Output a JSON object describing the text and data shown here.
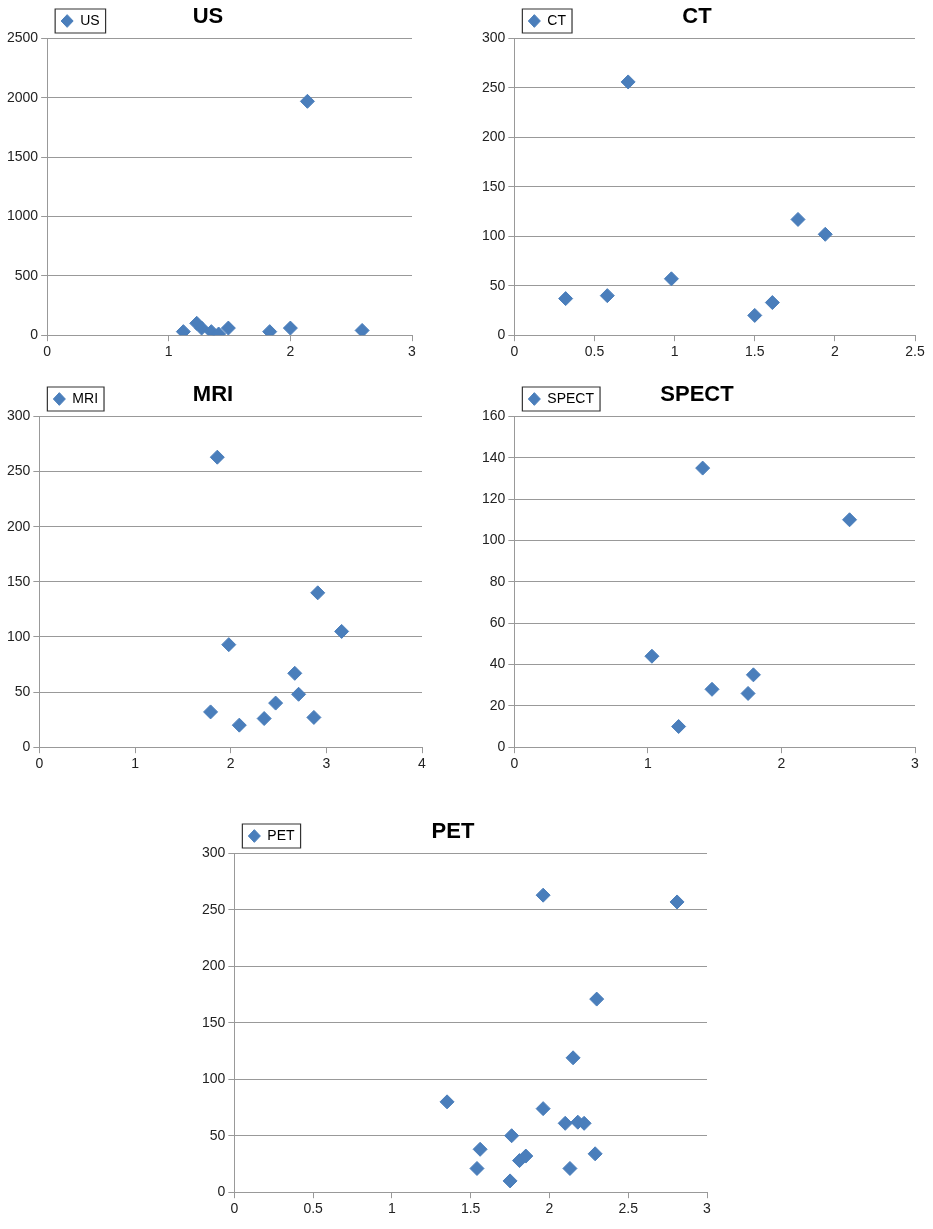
{
  "chart_data": [
    {
      "type": "scatter",
      "title": "US",
      "x": [
        1.12,
        1.23,
        1.27,
        1.35,
        1.41,
        1.49,
        1.83,
        2.0,
        2.14,
        2.59
      ],
      "series": [
        {
          "name": "US",
          "color": "#4a7ebb",
          "values": [
            30,
            100,
            60,
            30,
            10,
            60,
            30,
            60,
            1970,
            40
          ]
        }
      ],
      "xlim": [
        0,
        3
      ],
      "xticks": [
        0,
        1,
        2,
        3
      ],
      "ylim": [
        0,
        2500
      ],
      "yticks": [
        0,
        500,
        1000,
        1500,
        2000,
        2500
      ],
      "grid": "y",
      "legend": "top left",
      "marker": "diamond"
    },
    {
      "type": "scatter",
      "title": "CT",
      "x": [
        0.32,
        0.58,
        0.71,
        0.98,
        1.5,
        1.61,
        1.77,
        1.94
      ],
      "series": [
        {
          "name": "CT",
          "color": "#4a7ebb",
          "values": [
            37,
            40,
            256,
            57,
            20,
            33,
            117,
            102
          ]
        }
      ],
      "xlim": [
        0,
        2.5
      ],
      "xticks": [
        0,
        0.5,
        1,
        1.5,
        2,
        2.5
      ],
      "ylim": [
        0,
        300
      ],
      "yticks": [
        0,
        50,
        100,
        150,
        200,
        250,
        300
      ],
      "grid": "y",
      "legend": "top left",
      "marker": "diamond"
    },
    {
      "type": "scatter",
      "title": "MRI",
      "x": [
        1.79,
        1.86,
        1.98,
        2.09,
        2.35,
        2.47,
        2.67,
        2.71,
        2.87,
        2.91,
        3.16
      ],
      "series": [
        {
          "name": "MRI",
          "color": "#4a7ebb",
          "values": [
            32,
            263,
            93,
            20,
            26,
            40,
            67,
            48,
            27,
            140,
            105
          ]
        }
      ],
      "xlim": [
        0,
        4
      ],
      "xticks": [
        0,
        1,
        2,
        3,
        4
      ],
      "ylim": [
        0,
        300
      ],
      "yticks": [
        0,
        50,
        100,
        150,
        200,
        250,
        300
      ],
      "grid": "y",
      "legend": "top left",
      "marker": "diamond"
    },
    {
      "type": "scatter",
      "title": "SPECT",
      "x": [
        1.03,
        1.23,
        1.41,
        1.48,
        1.75,
        1.79,
        2.51
      ],
      "series": [
        {
          "name": "SPECT",
          "color": "#4a7ebb",
          "values": [
            44,
            10,
            135,
            28,
            26,
            35,
            110
          ]
        }
      ],
      "xlim": [
        0,
        3
      ],
      "xticks": [
        0,
        1,
        2,
        3
      ],
      "ylim": [
        0,
        160
      ],
      "yticks": [
        0,
        20,
        40,
        60,
        80,
        100,
        120,
        140,
        160
      ],
      "grid": "y",
      "legend": "top left",
      "marker": "diamond"
    },
    {
      "type": "scatter",
      "title": "PET",
      "x": [
        1.35,
        1.54,
        1.56,
        1.75,
        1.76,
        1.81,
        1.85,
        1.96,
        1.96,
        2.1,
        2.13,
        2.15,
        2.18,
        2.22,
        2.29,
        2.3,
        2.81
      ],
      "series": [
        {
          "name": "PET",
          "color": "#4a7ebb",
          "values": [
            80,
            21,
            38,
            10,
            50,
            28,
            32,
            74,
            263,
            61,
            21,
            119,
            62,
            61,
            34,
            171,
            257
          ]
        }
      ],
      "xlim": [
        0,
        3
      ],
      "xticks": [
        0,
        0.5,
        1,
        1.5,
        2,
        2.5,
        3
      ],
      "ylim": [
        0,
        300
      ],
      "yticks": [
        0,
        50,
        100,
        150,
        200,
        250,
        300
      ],
      "grid": "y",
      "legend": "top left",
      "marker": "diamond"
    }
  ]
}
